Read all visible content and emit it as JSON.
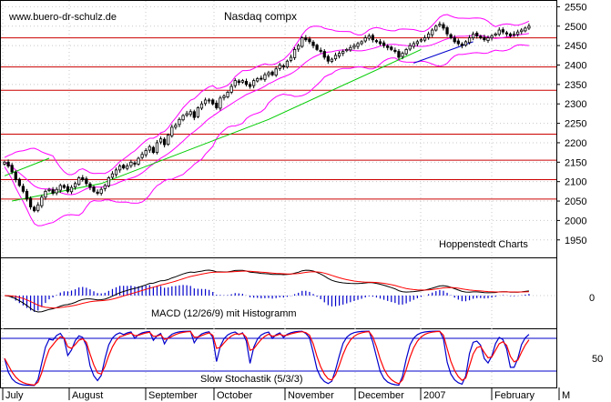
{
  "chart_data": {
    "type": "candlestick",
    "title": "Nasdaq compx",
    "watermark": "www.buero-dr-schulz.de",
    "source_label": "Hoppenstedt Charts",
    "price_axis": {
      "ticks": [
        1950,
        2000,
        2050,
        2100,
        2150,
        2200,
        2250,
        2300,
        2350,
        2400,
        2450,
        2500,
        2550
      ],
      "ylim": [
        1905,
        2565
      ]
    },
    "x_months": [
      "July",
      "August",
      "September",
      "October",
      "November",
      "December",
      "2007",
      "February",
      "M"
    ],
    "horizontal_levels": [
      2470,
      2395,
      2335,
      2222,
      2155,
      2105,
      2055
    ],
    "trendlines": [
      {
        "color": "#00cc00",
        "points": [
          [
            2,
            2050
          ],
          [
            26,
            2095
          ],
          [
            71,
            2260
          ],
          [
            112,
            2440
          ]
        ]
      },
      {
        "color": "#0000cc",
        "points": [
          [
            110,
            2405
          ],
          [
            126,
            2460
          ]
        ]
      },
      {
        "color": "#00cc00",
        "points": [
          [
            0,
            2115
          ],
          [
            12,
            2160
          ]
        ]
      }
    ],
    "bollinger_color": "#ff00ff",
    "ma_color": "#ff00ff",
    "close_series": [
      2150,
      2140,
      2125,
      2105,
      2090,
      2075,
      2055,
      2035,
      2025,
      2040,
      2060,
      2075,
      2080,
      2070,
      2080,
      2090,
      2085,
      2075,
      2085,
      2095,
      2110,
      2105,
      2095,
      2085,
      2075,
      2070,
      2080,
      2090,
      2110,
      2120,
      2130,
      2140,
      2135,
      2140,
      2150,
      2145,
      2160,
      2170,
      2180,
      2190,
      2175,
      2200,
      2210,
      2195,
      2220,
      2240,
      2245,
      2260,
      2270,
      2275,
      2280,
      2265,
      2290,
      2300,
      2310,
      2310,
      2300,
      2290,
      2315,
      2320,
      2330,
      2345,
      2360,
      2355,
      2360,
      2350,
      2345,
      2360,
      2365,
      2365,
      2375,
      2380,
      2375,
      2390,
      2400,
      2395,
      2410,
      2420,
      2440,
      2450,
      2470,
      2465,
      2460,
      2450,
      2440,
      2435,
      2420,
      2410,
      2415,
      2425,
      2430,
      2435,
      2440,
      2445,
      2450,
      2455,
      2460,
      2470,
      2475,
      2465,
      2460,
      2455,
      2450,
      2445,
      2440,
      2435,
      2420,
      2430,
      2440,
      2450,
      2455,
      2460,
      2465,
      2470,
      2480,
      2490,
      2500,
      2505,
      2495,
      2480,
      2470,
      2460,
      2455,
      2450,
      2460,
      2470,
      2480,
      2475,
      2470,
      2465,
      2470,
      2475,
      2480,
      2490,
      2485,
      2480,
      2475,
      2480,
      2485,
      2490,
      2495,
      2500
    ],
    "macd": {
      "label": "MACD (12/26/9) mit Histogramm",
      "zero_tick": "0",
      "macd_color": "#000000",
      "signal_color": "#ff0000",
      "histogram_color": "#0000cc"
    },
    "stochastic": {
      "label": "Slow Stochastik (5/3/3)",
      "tick": "50",
      "k_color": "#0000cc",
      "d_color": "#ff0000",
      "band_color": "#0000cc"
    }
  }
}
